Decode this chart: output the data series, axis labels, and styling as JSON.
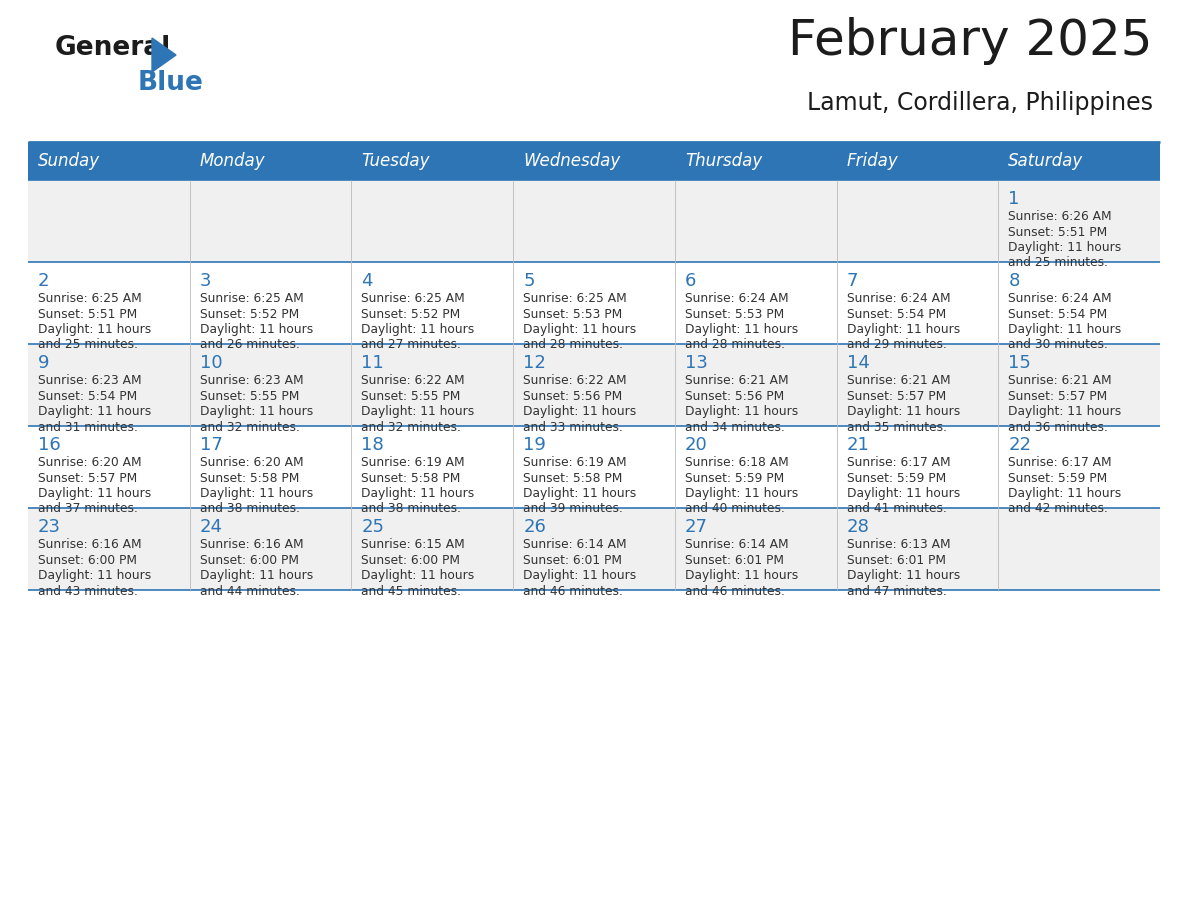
{
  "title": "February 2025",
  "subtitle": "Lamut, Cordillera, Philippines",
  "header_color": "#2E75B6",
  "header_text_color": "#FFFFFF",
  "day_names": [
    "Sunday",
    "Monday",
    "Tuesday",
    "Wednesday",
    "Thursday",
    "Friday",
    "Saturday"
  ],
  "alt_row_color": "#F0F0F0",
  "white_color": "#FFFFFF",
  "border_color": "#2E75B6",
  "text_color": "#333333",
  "day_num_color": "#2E75B6",
  "cal_data": [
    [
      {
        "day": null,
        "sunrise": null,
        "sunset": null,
        "daylight": null
      },
      {
        "day": null,
        "sunrise": null,
        "sunset": null,
        "daylight": null
      },
      {
        "day": null,
        "sunrise": null,
        "sunset": null,
        "daylight": null
      },
      {
        "day": null,
        "sunrise": null,
        "sunset": null,
        "daylight": null
      },
      {
        "day": null,
        "sunrise": null,
        "sunset": null,
        "daylight": null
      },
      {
        "day": null,
        "sunrise": null,
        "sunset": null,
        "daylight": null
      },
      {
        "day": 1,
        "sunrise": "6:26 AM",
        "sunset": "5:51 PM",
        "daylight": "11 hours and 25 minutes."
      }
    ],
    [
      {
        "day": 2,
        "sunrise": "6:25 AM",
        "sunset": "5:51 PM",
        "daylight": "11 hours and 25 minutes."
      },
      {
        "day": 3,
        "sunrise": "6:25 AM",
        "sunset": "5:52 PM",
        "daylight": "11 hours and 26 minutes."
      },
      {
        "day": 4,
        "sunrise": "6:25 AM",
        "sunset": "5:52 PM",
        "daylight": "11 hours and 27 minutes."
      },
      {
        "day": 5,
        "sunrise": "6:25 AM",
        "sunset": "5:53 PM",
        "daylight": "11 hours and 28 minutes."
      },
      {
        "day": 6,
        "sunrise": "6:24 AM",
        "sunset": "5:53 PM",
        "daylight": "11 hours and 28 minutes."
      },
      {
        "day": 7,
        "sunrise": "6:24 AM",
        "sunset": "5:54 PM",
        "daylight": "11 hours and 29 minutes."
      },
      {
        "day": 8,
        "sunrise": "6:24 AM",
        "sunset": "5:54 PM",
        "daylight": "11 hours and 30 minutes."
      }
    ],
    [
      {
        "day": 9,
        "sunrise": "6:23 AM",
        "sunset": "5:54 PM",
        "daylight": "11 hours and 31 minutes."
      },
      {
        "day": 10,
        "sunrise": "6:23 AM",
        "sunset": "5:55 PM",
        "daylight": "11 hours and 32 minutes."
      },
      {
        "day": 11,
        "sunrise": "6:22 AM",
        "sunset": "5:55 PM",
        "daylight": "11 hours and 32 minutes."
      },
      {
        "day": 12,
        "sunrise": "6:22 AM",
        "sunset": "5:56 PM",
        "daylight": "11 hours and 33 minutes."
      },
      {
        "day": 13,
        "sunrise": "6:21 AM",
        "sunset": "5:56 PM",
        "daylight": "11 hours and 34 minutes."
      },
      {
        "day": 14,
        "sunrise": "6:21 AM",
        "sunset": "5:57 PM",
        "daylight": "11 hours and 35 minutes."
      },
      {
        "day": 15,
        "sunrise": "6:21 AM",
        "sunset": "5:57 PM",
        "daylight": "11 hours and 36 minutes."
      }
    ],
    [
      {
        "day": 16,
        "sunrise": "6:20 AM",
        "sunset": "5:57 PM",
        "daylight": "11 hours and 37 minutes."
      },
      {
        "day": 17,
        "sunrise": "6:20 AM",
        "sunset": "5:58 PM",
        "daylight": "11 hours and 38 minutes."
      },
      {
        "day": 18,
        "sunrise": "6:19 AM",
        "sunset": "5:58 PM",
        "daylight": "11 hours and 38 minutes."
      },
      {
        "day": 19,
        "sunrise": "6:19 AM",
        "sunset": "5:58 PM",
        "daylight": "11 hours and 39 minutes."
      },
      {
        "day": 20,
        "sunrise": "6:18 AM",
        "sunset": "5:59 PM",
        "daylight": "11 hours and 40 minutes."
      },
      {
        "day": 21,
        "sunrise": "6:17 AM",
        "sunset": "5:59 PM",
        "daylight": "11 hours and 41 minutes."
      },
      {
        "day": 22,
        "sunrise": "6:17 AM",
        "sunset": "5:59 PM",
        "daylight": "11 hours and 42 minutes."
      }
    ],
    [
      {
        "day": 23,
        "sunrise": "6:16 AM",
        "sunset": "6:00 PM",
        "daylight": "11 hours and 43 minutes."
      },
      {
        "day": 24,
        "sunrise": "6:16 AM",
        "sunset": "6:00 PM",
        "daylight": "11 hours and 44 minutes."
      },
      {
        "day": 25,
        "sunrise": "6:15 AM",
        "sunset": "6:00 PM",
        "daylight": "11 hours and 45 minutes."
      },
      {
        "day": 26,
        "sunrise": "6:14 AM",
        "sunset": "6:01 PM",
        "daylight": "11 hours and 46 minutes."
      },
      {
        "day": 27,
        "sunrise": "6:14 AM",
        "sunset": "6:01 PM",
        "daylight": "11 hours and 46 minutes."
      },
      {
        "day": 28,
        "sunrise": "6:13 AM",
        "sunset": "6:01 PM",
        "daylight": "11 hours and 47 minutes."
      },
      {
        "day": null,
        "sunrise": null,
        "sunset": null,
        "daylight": null
      }
    ]
  ]
}
